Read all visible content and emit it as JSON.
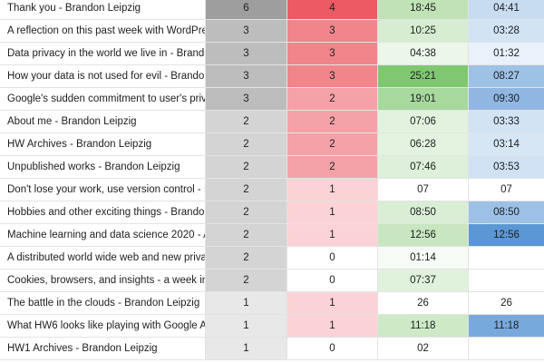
{
  "rows": [
    {
      "title": "Thank you - Brandon Leipzig",
      "a": "6",
      "b": "4",
      "c": "18:45",
      "d": "04:41",
      "colors": {
        "title": "#ffffff",
        "a": "#9e9e9e",
        "b": "#ee5a63",
        "c": "#bfe3b6",
        "d": "#c8dcf1"
      }
    },
    {
      "title": "A reflection on this past week with WordPre…",
      "a": "3",
      "b": "3",
      "c": "10:25",
      "d": "03:28",
      "colors": {
        "title": "#ffffff",
        "a": "#bdbdbd",
        "b": "#f2858c",
        "c": "#d6edd1",
        "d": "#d2e3f4"
      }
    },
    {
      "title": "Data privacy in the world we live in - Brando…",
      "a": "3",
      "b": "3",
      "c": "04:38",
      "d": "01:32",
      "colors": {
        "title": "#ffffff",
        "a": "#bdbdbd",
        "b": "#f2858c",
        "c": "#ecf6e9",
        "d": "#e9f1fa"
      }
    },
    {
      "title": "How your data is not used for evil - Brandon…",
      "a": "3",
      "b": "3",
      "c": "25:21",
      "d": "08:27",
      "colors": {
        "title": "#ffffff",
        "a": "#bdbdbd",
        "b": "#f2858c",
        "c": "#7fc870",
        "d": "#9ec1e6"
      }
    },
    {
      "title": "Google's sudden commitment to user's priv…",
      "a": "3",
      "b": "2",
      "c": "19:01",
      "d": "09:30",
      "colors": {
        "title": "#ffffff",
        "a": "#bdbdbd",
        "b": "#f4a2a8",
        "c": "#a6d99b",
        "d": "#8fb7e2"
      }
    },
    {
      "title": "About me - Brandon Leipzig",
      "a": "2",
      "b": "2",
      "c": "07:06",
      "d": "03:33",
      "colors": {
        "title": "#ffffff",
        "a": "#d4d4d4",
        "b": "#f4a2a8",
        "c": "#e2f2de",
        "d": "#d2e3f4"
      }
    },
    {
      "title": "HW Archives - Brandon Leipzig",
      "a": "2",
      "b": "2",
      "c": "06:28",
      "d": "03:14",
      "colors": {
        "title": "#ffffff",
        "a": "#d4d4d4",
        "b": "#f4a2a8",
        "c": "#e4f3e0",
        "d": "#d6e6f5"
      }
    },
    {
      "title": "Unpublished works - Brandon Leipzig",
      "a": "2",
      "b": "2",
      "c": "07:46",
      "d": "03:53",
      "colors": {
        "title": "#ffffff",
        "a": "#d4d4d4",
        "b": "#f4a2a8",
        "c": "#dff0da",
        "d": "#cfe1f3"
      }
    },
    {
      "title": "Don't lose your work, use version control - Br…",
      "a": "2",
      "b": "1",
      "c": "07",
      "d": "07",
      "colors": {
        "title": "#ffffff",
        "a": "#d4d4d4",
        "b": "#fbd3d6",
        "c": "#ffffff",
        "d": "#ffffff"
      }
    },
    {
      "title": "Hobbies and other exciting things - Brando…",
      "a": "2",
      "b": "1",
      "c": "08:50",
      "d": "08:50",
      "colors": {
        "title": "#ffffff",
        "a": "#d4d4d4",
        "b": "#fbd3d6",
        "c": "#d9eed4",
        "d": "#9cc0e6"
      }
    },
    {
      "title": "Machine learning and data science 2020 - A…",
      "a": "2",
      "b": "1",
      "c": "12:56",
      "d": "12:56",
      "colors": {
        "title": "#ffffff",
        "a": "#d4d4d4",
        "b": "#fbd3d6",
        "c": "#c8e7c0",
        "d": "#5b97d4"
      }
    },
    {
      "title": "A distributed world wide web and new priva…",
      "a": "2",
      "b": "0",
      "c": "01:14",
      "d": "",
      "colors": {
        "title": "#ffffff",
        "a": "#d4d4d4",
        "b": "#ffffff",
        "c": "#f6fbf5",
        "d": "#ffffff"
      }
    },
    {
      "title": "Cookies, browsers, and insights - a week in r…",
      "a": "2",
      "b": "0",
      "c": "07:37",
      "d": "",
      "colors": {
        "title": "#ffffff",
        "a": "#d4d4d4",
        "b": "#ffffff",
        "c": "#e0f1dc",
        "d": "#ffffff"
      }
    },
    {
      "title": "The battle in the clouds - Brandon Leipzig",
      "a": "1",
      "b": "1",
      "c": "26",
      "d": "26",
      "colors": {
        "title": "#ffffff",
        "a": "#e8e8e8",
        "b": "#fbd3d6",
        "c": "#ffffff",
        "d": "#ffffff"
      }
    },
    {
      "title": "What HW6 looks like playing with Google A…",
      "a": "1",
      "b": "1",
      "c": "11:18",
      "d": "11:18",
      "colors": {
        "title": "#ffffff",
        "a": "#e8e8e8",
        "b": "#fbd3d6",
        "c": "#cde9c6",
        "d": "#78a9dc"
      }
    },
    {
      "title": "HW1 Archives - Brandon Leipzig",
      "a": "1",
      "b": "0",
      "c": "02",
      "d": "",
      "colors": {
        "title": "#ffffff",
        "a": "#e8e8e8",
        "b": "#ffffff",
        "c": "#ffffff",
        "d": "#ffffff"
      }
    }
  ]
}
